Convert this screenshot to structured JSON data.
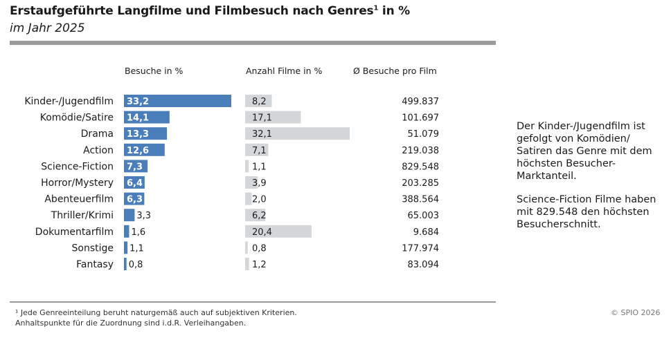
{
  "header": {
    "title": "Erstaufgeführte Langfilme und Filmbesuch nach Genres",
    "title_sup": "1",
    "title_suffix": " in %",
    "subtitle": "im Jahr 2025"
  },
  "columns": {
    "besuche": "Besuche in %",
    "filme": "Anzahl Filme in %",
    "avg": "Ø Besuche pro Film"
  },
  "chart_data": {
    "type": "bar",
    "categories": [
      "Kinder-/Jugendfilm",
      "Komödie/Satire",
      "Drama",
      "Action",
      "Science-Fiction",
      "Horror/Mystery",
      "Abenteuerfilm",
      "Thriller/Krimi",
      "Dokumentarfilm",
      "Sonstige",
      "Fantasy"
    ],
    "series": [
      {
        "name": "Besuche in %",
        "values": [
          33.2,
          14.1,
          13.3,
          12.6,
          7.3,
          6.4,
          6.3,
          3.3,
          1.6,
          1.1,
          0.8
        ],
        "labels": [
          "33,2",
          "14,1",
          "13,3",
          "12,6",
          "7,3",
          "6,4",
          "6,3",
          "3,3",
          "1,6",
          "1,1",
          "0,8"
        ],
        "color": "#4a7ebb"
      },
      {
        "name": "Anzahl Filme in %",
        "values": [
          8.2,
          17.1,
          32.1,
          7.1,
          1.1,
          3.9,
          2.0,
          6.2,
          20.4,
          0.8,
          1.2
        ],
        "labels": [
          "8,2",
          "17,1",
          "32,1",
          "7,1",
          "1,1",
          "3,9",
          "2,0",
          "6,2",
          "20,4",
          "0,8",
          "1,2"
        ],
        "color": "#d4d7da"
      },
      {
        "name": "Ø Besuche pro Film",
        "values": [
          499837,
          101697,
          51079,
          219038,
          829548,
          203285,
          388564,
          65003,
          9684,
          177974,
          83094
        ],
        "labels": [
          "499.837",
          "101.697",
          "51.079",
          "219.038",
          "829.548",
          "203.285",
          "388.564",
          "65.003",
          "9.684",
          "177.974",
          "83.094"
        ]
      }
    ]
  },
  "sidebar": {
    "text1": "Der Kinder-/Jugendfilm ist gefolgt von Komödien/ Satiren das Genre mit dem höchsten Besucher-Marktanteil.",
    "text2": "Science-Fiction Filme haben mit 829.548 den höchsten Besucherschnitt."
  },
  "footer": {
    "footnote_line1": "¹ Jede Genreeinteilung beruht naturgemäß auch auf subjektiven Kriterien.",
    "footnote_line2": "Anhaltspunkte für die Zuordnung sind i.d.R. Verleihangaben.",
    "copyright": "© SPIO 2026"
  }
}
